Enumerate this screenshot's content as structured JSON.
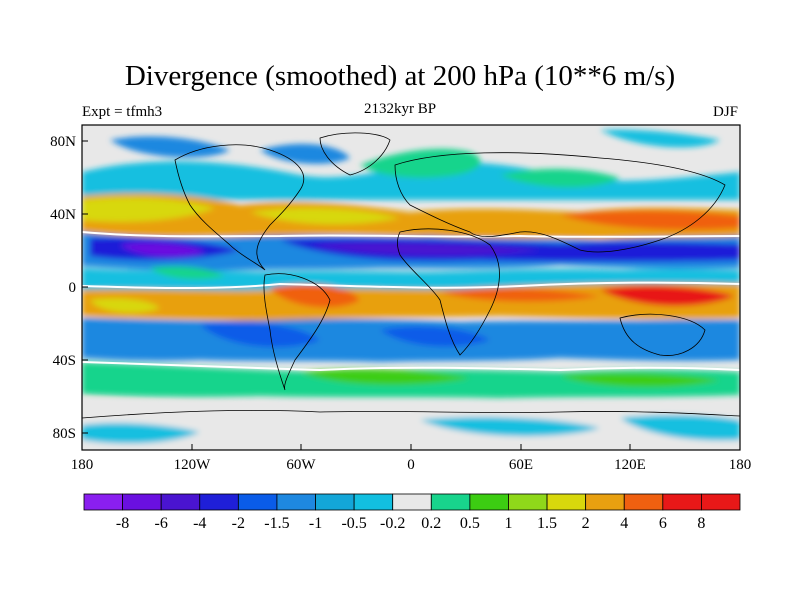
{
  "title": "Divergence (smoothed) at 200 hPa (10**6 m/s)",
  "subtitle_left": "Expt = tfmh3",
  "subtitle_center": "2132kyr BP",
  "subtitle_right": "DJF",
  "lat_ticks": [
    "80N",
    "40N",
    "0",
    "40S",
    "80S"
  ],
  "lon_ticks": [
    "180",
    "120W",
    "60W",
    "0",
    "60E",
    "120E",
    "180"
  ],
  "colorbar": {
    "labels": [
      "-8",
      "-6",
      "-4",
      "-2",
      "-1.5",
      "-1",
      "-0.5",
      "-0.2",
      "0.2",
      "0.5",
      "1",
      "1.5",
      "2",
      "4",
      "6",
      "8"
    ],
    "colors": [
      "#8a1ff0",
      "#6a10e0",
      "#4a14d0",
      "#1f1fd8",
      "#0a5ce8",
      "#1e88e0",
      "#13a6d8",
      "#12bfe0",
      "#e8e8e8",
      "#18d48c",
      "#3ccd12",
      "#8fd81a",
      "#d8d80c",
      "#e8a010",
      "#f06010",
      "#e81818"
    ]
  },
  "colors": {
    "background": "#e8e8e8",
    "coast": "#000000",
    "contour": "#ffffff"
  }
}
